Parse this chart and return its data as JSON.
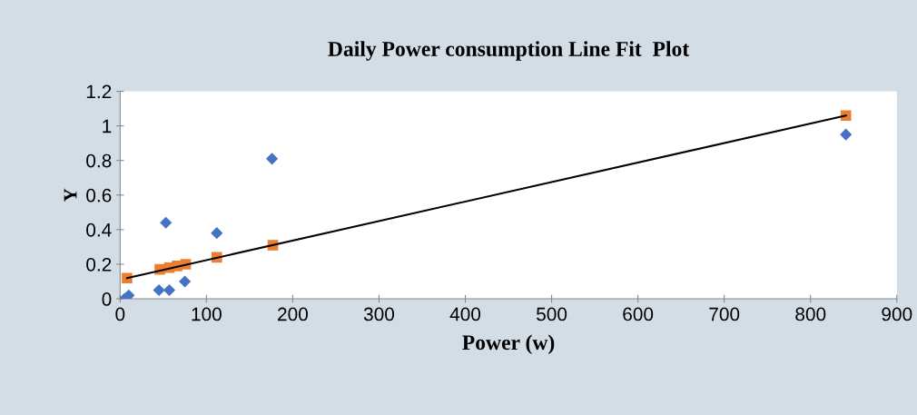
{
  "chart_data": {
    "type": "scatter",
    "title": "Daily Power consumption Line Fit  Plot",
    "xlabel": "Power (w)",
    "ylabel": "Y",
    "series": [
      {
        "marker": "diamond",
        "color": "#4472c4",
        "x": [
          5,
          10,
          45,
          53,
          57,
          75,
          112,
          176,
          841
        ],
        "values": [
          0.0,
          0.02,
          0.05,
          0.44,
          0.05,
          0.1,
          0.38,
          0.81,
          0.95
        ]
      },
      {
        "marker": "square",
        "color": "#ed7d31",
        "x": [
          8,
          46,
          57,
          66,
          76,
          112,
          177,
          841
        ],
        "values": [
          0.12,
          0.17,
          0.18,
          0.19,
          0.2,
          0.24,
          0.31,
          1.06
        ]
      },
      {
        "type": "line",
        "marker": "none",
        "color": "#000000",
        "x": [
          8,
          841
        ],
        "values": [
          0.12,
          1.06
        ]
      }
    ],
    "xlim": [
      0,
      900
    ],
    "xticks": [
      0,
      100,
      200,
      300,
      400,
      500,
      600,
      700,
      800,
      900
    ],
    "ylim": [
      0,
      1.2
    ],
    "yticks": [
      0,
      0.2,
      0.4,
      0.6,
      0.8,
      1,
      1.2
    ],
    "grid": false,
    "legend": false
  }
}
